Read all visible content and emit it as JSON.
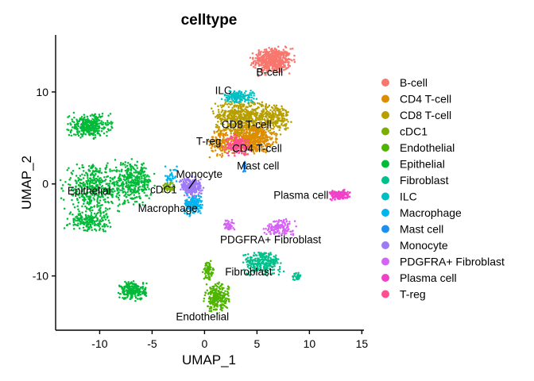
{
  "chart_data": {
    "type": "scatter",
    "title": "celltype",
    "xlabel": "UMAP_1",
    "ylabel": "UMAP_2",
    "xlim": [
      -14.2,
      15.2
    ],
    "ylim": [
      -15.9,
      16.2
    ],
    "xticks": [
      -10,
      -5,
      0,
      5,
      10,
      15
    ],
    "yticks": [
      -10,
      0,
      10
    ],
    "grid": false,
    "legend_position": "right",
    "legend": [
      {
        "name": "B-cell",
        "color": "#F8766D"
      },
      {
        "name": "CD4 T-cell",
        "color": "#DE8C00"
      },
      {
        "name": "CD8 T-cell",
        "color": "#B79F00"
      },
      {
        "name": "cDC1",
        "color": "#7CAE00"
      },
      {
        "name": "Endothelial",
        "color": "#4EB400"
      },
      {
        "name": "Epithelial",
        "color": "#00BA38"
      },
      {
        "name": "Fibroblast",
        "color": "#00C08B"
      },
      {
        "name": "ILC",
        "color": "#00BFC4"
      },
      {
        "name": "Macrophage",
        "color": "#00B4F0"
      },
      {
        "name": "Mast cell",
        "color": "#1C8FF0"
      },
      {
        "name": "Monocyte",
        "color": "#9E7BF5"
      },
      {
        "name": "PDGFRA+ Fibroblast",
        "color": "#D663F5"
      },
      {
        "name": "Plasma cell",
        "color": "#F042C8"
      },
      {
        "name": "T-reg",
        "color": "#FF4F90"
      }
    ],
    "cluster_labels": [
      {
        "text": "B-cell",
        "x": 6.2,
        "y": 12.2
      },
      {
        "text": "ILC",
        "x": 1.8,
        "y": 10.2
      },
      {
        "text": "CD8 T-cell",
        "x": 4.0,
        "y": 6.5
      },
      {
        "text": "T-reg",
        "x": 0.4,
        "y": 4.7
      },
      {
        "text": "CD4 T-cell",
        "x": 5.0,
        "y": 3.9
      },
      {
        "text": "Mast cell",
        "x": 5.1,
        "y": 2.0
      },
      {
        "text": "Monocyte",
        "x": -0.5,
        "y": 1.1
      },
      {
        "text": "cDC1",
        "x": -3.9,
        "y": -0.6
      },
      {
        "text": "Epithelial",
        "x": -11.0,
        "y": -0.7
      },
      {
        "text": "Macrophage",
        "x": -3.5,
        "y": -2.6
      },
      {
        "text": "Plasma cell",
        "x": 9.2,
        "y": -1.2
      },
      {
        "text": "PDGFRA+ Fibroblast",
        "x": 6.3,
        "y": -6.0
      },
      {
        "text": "Fibroblast",
        "x": 4.2,
        "y": -9.5
      },
      {
        "text": "Endothelial",
        "x": -0.2,
        "y": -14.4
      }
    ],
    "clusters": [
      {
        "type": "B-cell",
        "cx": 6.5,
        "cy": 13.4,
        "sx": 1.6,
        "sy": 1.2,
        "n": 520
      },
      {
        "type": "CD4 T-cell",
        "cx": 4.5,
        "cy": 5.0,
        "sx": 1.9,
        "sy": 1.4,
        "n": 560
      },
      {
        "type": "CD4 T-cell",
        "cx": 1.5,
        "cy": 4.6,
        "sx": 0.9,
        "sy": 1.3,
        "n": 120
      },
      {
        "type": "CD8 T-cell",
        "cx": 3.5,
        "cy": 7.4,
        "sx": 2.2,
        "sy": 1.5,
        "n": 520
      },
      {
        "type": "CD8 T-cell",
        "cx": 6.8,
        "cy": 7.2,
        "sx": 1.2,
        "sy": 1.4,
        "n": 200
      },
      {
        "type": "ILC",
        "cx": 3.3,
        "cy": 9.5,
        "sx": 1.3,
        "sy": 0.6,
        "n": 140
      },
      {
        "type": "T-reg",
        "cx": 3.2,
        "cy": 4.2,
        "sx": 1.1,
        "sy": 0.9,
        "n": 170
      },
      {
        "type": "Mast cell",
        "cx": 3.8,
        "cy": 1.9,
        "sx": 0.15,
        "sy": 0.5,
        "n": 25
      },
      {
        "type": "Epithelial",
        "cx": -11.0,
        "cy": 6.3,
        "sx": 1.7,
        "sy": 1.1,
        "n": 330
      },
      {
        "type": "Epithelial",
        "cx": -10.5,
        "cy": -0.5,
        "sx": 2.6,
        "sy": 2.2,
        "n": 420
      },
      {
        "type": "Epithelial",
        "cx": -6.8,
        "cy": 0.2,
        "sx": 1.6,
        "sy": 1.9,
        "n": 320
      },
      {
        "type": "Epithelial",
        "cx": -11.0,
        "cy": -4.0,
        "sx": 1.8,
        "sy": 1.0,
        "n": 180
      },
      {
        "type": "Epithelial",
        "cx": -6.8,
        "cy": -11.6,
        "sx": 1.1,
        "sy": 0.9,
        "n": 220
      },
      {
        "type": "Endothelial",
        "cx": 1.2,
        "cy": -12.4,
        "sx": 1.0,
        "sy": 1.3,
        "n": 230
      },
      {
        "type": "Endothelial",
        "cx": 0.4,
        "cy": -9.4,
        "sx": 0.45,
        "sy": 0.9,
        "n": 70
      },
      {
        "type": "Fibroblast",
        "cx": 5.5,
        "cy": -8.6,
        "sx": 1.6,
        "sy": 1.1,
        "n": 260
      },
      {
        "type": "Fibroblast",
        "cx": 8.8,
        "cy": -10.0,
        "sx": 0.4,
        "sy": 0.4,
        "n": 30
      },
      {
        "type": "PDGFRA+ Fibroblast",
        "cx": 7.2,
        "cy": -4.7,
        "sx": 1.2,
        "sy": 0.8,
        "n": 140
      },
      {
        "type": "PDGFRA+ Fibroblast",
        "cx": 2.3,
        "cy": -4.5,
        "sx": 0.5,
        "sy": 0.5,
        "n": 50
      },
      {
        "type": "Plasma cell",
        "cx": 12.9,
        "cy": -1.2,
        "sx": 0.8,
        "sy": 0.45,
        "n": 170
      },
      {
        "type": "Macrophage",
        "cx": -1.1,
        "cy": -2.2,
        "sx": 0.7,
        "sy": 1.0,
        "n": 170
      },
      {
        "type": "Macrophage",
        "cx": -3.2,
        "cy": 0.7,
        "sx": 0.5,
        "sy": 1.0,
        "n": 40
      },
      {
        "type": "Monocyte",
        "cx": -1.2,
        "cy": -0.3,
        "sx": 0.9,
        "sy": 0.9,
        "n": 240
      },
      {
        "type": "cDC1",
        "cx": -3.5,
        "cy": -0.4,
        "sx": 0.5,
        "sy": 0.5,
        "n": 40
      }
    ]
  }
}
